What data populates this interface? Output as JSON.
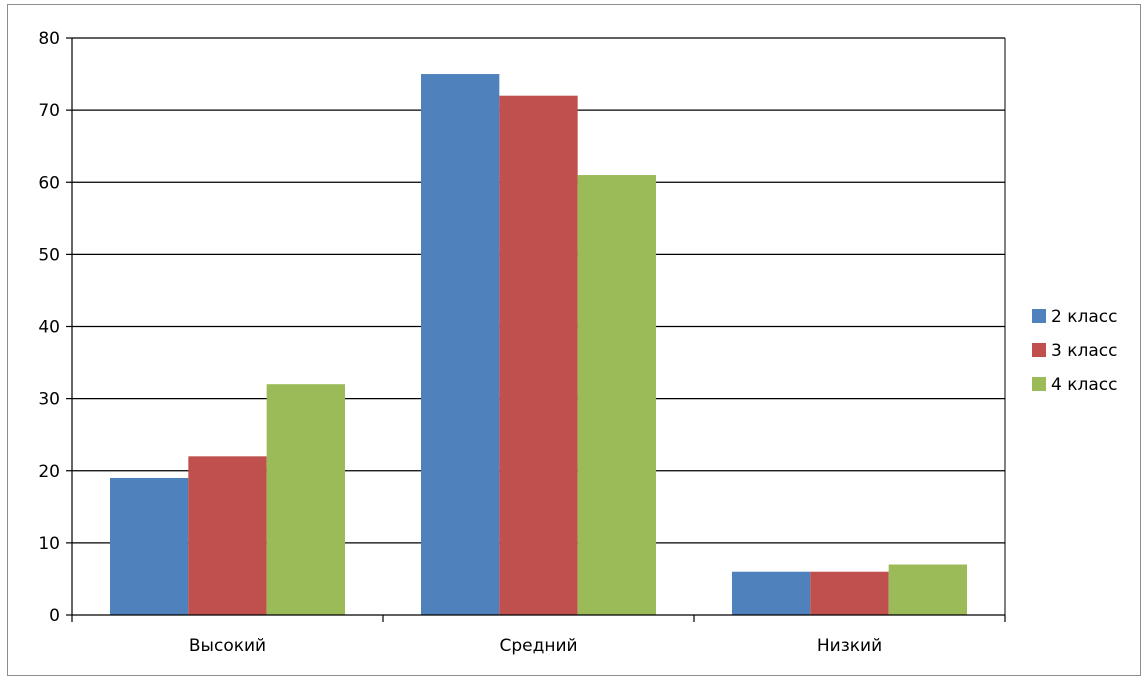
{
  "chart_data": {
    "type": "bar",
    "categories": [
      "Высокий",
      "Средний",
      "Низкий"
    ],
    "series": [
      {
        "name": "2 класс",
        "values": [
          19,
          75,
          6
        ],
        "color": "#4f81bd"
      },
      {
        "name": "3 класс",
        "values": [
          22,
          72,
          6
        ],
        "color": "#c0504d"
      },
      {
        "name": "4 класс",
        "values": [
          32,
          61,
          7
        ],
        "color": "#9bbb59"
      }
    ],
    "title": "",
    "xlabel": "",
    "ylabel": "",
    "ylim": [
      0,
      80
    ],
    "yticks": [
      0,
      10,
      20,
      30,
      40,
      50,
      60,
      70,
      80
    ],
    "grid": true,
    "legend_position": "right"
  }
}
